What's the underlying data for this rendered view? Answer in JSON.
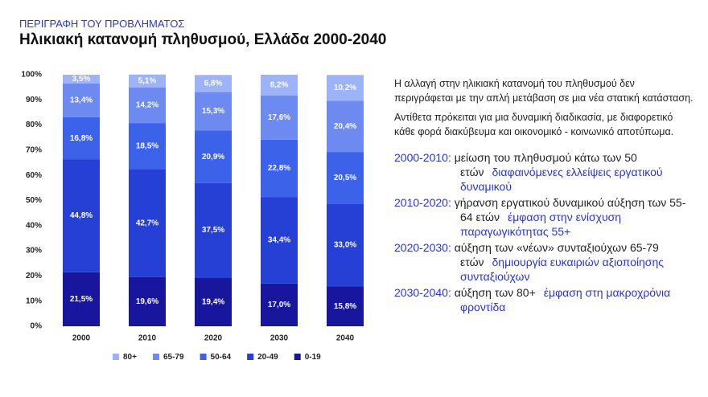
{
  "header": {
    "kicker": "ΠΕΡΙΓΡΑΦΗ ΤΟΥ ΠΡΟΒΛΗΜΑΤΟΣ",
    "title": "Ηλικιακή κατανομή πληθυσμού, Ελλάδα 2000-2040"
  },
  "chart_data": {
    "type": "stacked_bar",
    "categories": [
      "2000",
      "2010",
      "2020",
      "2030",
      "2040"
    ],
    "series": [
      {
        "name": "80+",
        "color": "#9db3f7",
        "values": [
          3.5,
          5.1,
          6.8,
          8.2,
          10.2
        ],
        "value_labels": [
          "3,5%",
          "5,1%",
          "6,8%",
          "8,2%",
          "10,2%"
        ]
      },
      {
        "name": "65-79",
        "color": "#6d8af1",
        "values": [
          13.4,
          14.2,
          15.3,
          17.6,
          20.4
        ],
        "value_labels": [
          "13,4%",
          "14,2%",
          "15,3%",
          "17,6%",
          "20,4%"
        ]
      },
      {
        "name": "50-64",
        "color": "#3c62ea",
        "values": [
          16.8,
          18.5,
          20.9,
          22.8,
          20.5
        ],
        "value_labels": [
          "16,8%",
          "18,5%",
          "20,9%",
          "22,8%",
          "20,5%"
        ]
      },
      {
        "name": "20-49",
        "color": "#2640d6",
        "values": [
          44.8,
          42.7,
          37.5,
          34.4,
          33.0
        ],
        "value_labels": [
          "44,8%",
          "42,7%",
          "37,5%",
          "34,4%",
          "33,0%"
        ]
      },
      {
        "name": "0-19",
        "color": "#17169c",
        "values": [
          21.5,
          19.6,
          19.4,
          17.0,
          15.8
        ],
        "value_labels": [
          "21,5%",
          "19,6%",
          "19,4%",
          "17,0%",
          "15,8%"
        ]
      }
    ],
    "ylim": [
      0,
      100
    ],
    "yticks": [
      {
        "value": 0,
        "label": "0%"
      },
      {
        "value": 10,
        "label": "10%"
      },
      {
        "value": 20,
        "label": "20%"
      },
      {
        "value": 30,
        "label": "30%"
      },
      {
        "value": 40,
        "label": "40%"
      },
      {
        "value": 50,
        "label": "50%"
      },
      {
        "value": 60,
        "label": "60%"
      },
      {
        "value": 70,
        "label": "70%"
      },
      {
        "value": 80,
        "label": "80%"
      },
      {
        "value": 90,
        "label": "90%"
      },
      {
        "value": 100,
        "label": "100%"
      }
    ],
    "legend": "bottom"
  },
  "text": {
    "paragraphs": [
      "Η αλλαγή στην ηλικιακή κατανομή του πληθυσμού δεν περιγράφεται με την απλή μετάβαση σε μια νέα στατική κατάσταση.",
      "Αντίθετα πρόκειται για μια δυναμική διαδικασία, με διαφορετικό κάθε φορά διακύβευμα και οικονομικό - κοινωνικό αποτύπωμα."
    ],
    "notes": [
      {
        "period": "2000-2010:",
        "text": "μείωση του πληθυσμού κάτω των 50 ετών",
        "emphasis": "διαφαινόμενες ελλείψεις εργατικού δυναμικού"
      },
      {
        "period": "2010-2020:",
        "text": "γήρανση εργατικού δυναμικού αύξηση των 55-64 ετών",
        "emphasis": "έμφαση στην ενίσχυση παραγωγικότητας 55+"
      },
      {
        "period": "2020-2030:",
        "text": "αύξηση των «νέων» συνταξιούχων 65-79 ετών",
        "emphasis": "δημιουργία ευκαιριών αξιοποίησης συνταξιούχων"
      },
      {
        "period": "2030-2040:",
        "text": "αύξηση των 80+",
        "emphasis": "έμφαση στη μακροχρόνια φροντίδα"
      }
    ]
  }
}
